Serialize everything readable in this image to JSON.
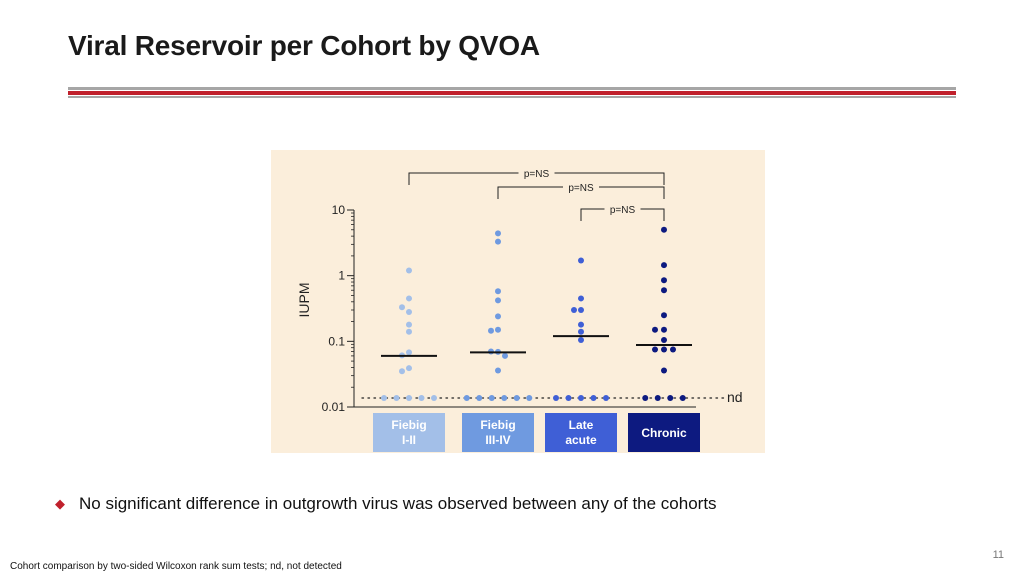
{
  "slide": {
    "title": "Viral Reservoir per Cohort by QVOA",
    "bullet": "No significant difference in outgrowth virus was observed between any of the cohorts",
    "footnote": "Cohort comparison by two-sided Wilcoxon rank sum tests; nd, not detected",
    "page_number": "11"
  },
  "colors": {
    "accent_red": "#c0202c",
    "rule_gray": "#a6a6a6",
    "chart_bg": "#fbeedb"
  },
  "chart_data": {
    "type": "scatter",
    "ylabel": "IUPM",
    "yscale": "log",
    "ylim": [
      0.01,
      10
    ],
    "yticks": [
      {
        "value": 10,
        "label": "10"
      },
      {
        "value": 1,
        "label": "1"
      },
      {
        "value": 0.1,
        "label": "0.1"
      },
      {
        "value": 0.01,
        "label": "0.01"
      }
    ],
    "nd_label": "nd",
    "cohorts": [
      {
        "line1": "Fiebig",
        "line2": "I-II",
        "color": "#a3bfe8",
        "label_color": "#a3bfe8",
        "median": 0.06,
        "values": [
          1.2,
          0.45,
          0.28,
          0.33,
          0.18,
          0.14,
          0.068,
          0.061,
          0.039,
          0.035
        ],
        "nd_count": 5
      },
      {
        "line1": "Fiebig",
        "line2": "III-IV",
        "color": "#6f9ae0",
        "label_color": "#6f9ae0",
        "median": 0.068,
        "values": [
          4.4,
          3.3,
          0.58,
          0.42,
          0.24,
          0.15,
          0.145,
          0.069,
          0.07,
          0.06,
          0.036
        ],
        "nd_count": 6
      },
      {
        "line1": "Late",
        "line2": "acute",
        "color": "#3f5fd6",
        "label_color": "#3f5fd6",
        "median": 0.12,
        "values": [
          1.7,
          0.45,
          0.3,
          0.3,
          0.18,
          0.14,
          0.105
        ],
        "nd_count": 5
      },
      {
        "line1": "Chronic",
        "line2": "",
        "color": "#0d1a80",
        "label_color": "#0d1a80",
        "median": 0.088,
        "values": [
          5.0,
          1.45,
          0.85,
          0.6,
          0.25,
          0.15,
          0.15,
          0.105,
          0.075,
          0.075,
          0.075,
          0.036
        ],
        "nd_count": 4
      }
    ],
    "comparisons": [
      {
        "from": 0,
        "to": 3,
        "label": "p=NS"
      },
      {
        "from": 1,
        "to": 3,
        "label": "p=NS"
      },
      {
        "from": 2,
        "to": 3,
        "label": "p=NS"
      }
    ]
  }
}
